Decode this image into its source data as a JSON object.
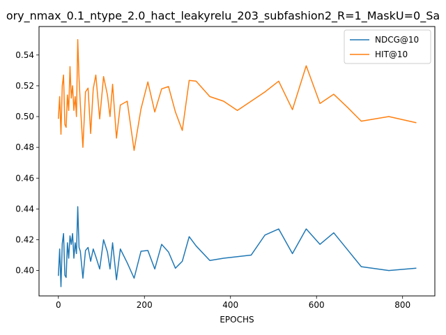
{
  "chart_data": {
    "type": "line",
    "title": "ory_nmax_0.1_ntype_2.0_hact_leakyrelu_203_subfashion2_R=1_MaskU=0_Sa",
    "xlabel": "EPOCHS",
    "ylabel": "",
    "xlim": [
      -45,
      875
    ],
    "ylim": [
      0.3835,
      0.5585
    ],
    "xticks": [
      0,
      200,
      400,
      600,
      800
    ],
    "yticks": [
      0.4,
      0.42,
      0.44,
      0.46,
      0.48,
      0.5,
      0.52,
      0.54
    ],
    "grid": false,
    "legend_position": "top-right",
    "x": [
      0,
      3,
      6,
      9,
      12,
      15,
      18,
      21,
      24,
      27,
      30,
      33,
      36,
      39,
      42,
      45,
      48,
      51,
      57,
      63,
      69,
      75,
      81,
      87,
      96,
      105,
      114,
      120,
      126,
      135,
      144,
      160,
      176,
      192,
      208,
      224,
      240,
      256,
      272,
      288,
      304,
      320,
      352,
      384,
      416,
      448,
      480,
      512,
      544,
      576,
      608,
      640,
      672,
      704,
      768,
      832
    ],
    "series": [
      {
        "name": "NDCG@10",
        "color": "#1f77b4",
        "values": [
          0.3965,
          0.414,
          0.3895,
          0.4175,
          0.424,
          0.397,
          0.3955,
          0.418,
          0.408,
          0.4225,
          0.417,
          0.424,
          0.408,
          0.418,
          0.411,
          0.4415,
          0.415,
          0.4125,
          0.395,
          0.413,
          0.415,
          0.406,
          0.414,
          0.409,
          0.401,
          0.42,
          0.412,
          0.401,
          0.418,
          0.394,
          0.414,
          0.405,
          0.395,
          0.4125,
          0.413,
          0.401,
          0.417,
          0.412,
          0.4015,
          0.406,
          0.422,
          0.416,
          0.4065,
          0.408,
          0.409,
          0.41,
          0.423,
          0.427,
          0.411,
          0.427,
          0.417,
          0.4245,
          0.4135,
          0.4025,
          0.4,
          0.4015
        ]
      },
      {
        "name": "HIT@10",
        "color": "#ff7f0e",
        "values": [
          0.4985,
          0.513,
          0.4885,
          0.52,
          0.527,
          0.495,
          0.493,
          0.514,
          0.504,
          0.5325,
          0.512,
          0.52,
          0.504,
          0.513,
          0.5,
          0.55,
          0.525,
          0.508,
          0.48,
          0.516,
          0.5185,
          0.489,
          0.518,
          0.527,
          0.4985,
          0.526,
          0.514,
          0.5,
          0.521,
          0.486,
          0.5075,
          0.51,
          0.478,
          0.505,
          0.5225,
          0.503,
          0.518,
          0.5195,
          0.503,
          0.491,
          0.5235,
          0.523,
          0.513,
          0.51,
          0.504,
          0.51,
          0.516,
          0.523,
          0.5045,
          0.533,
          0.5085,
          0.5145,
          0.506,
          0.497,
          0.5,
          0.496
        ]
      }
    ]
  }
}
